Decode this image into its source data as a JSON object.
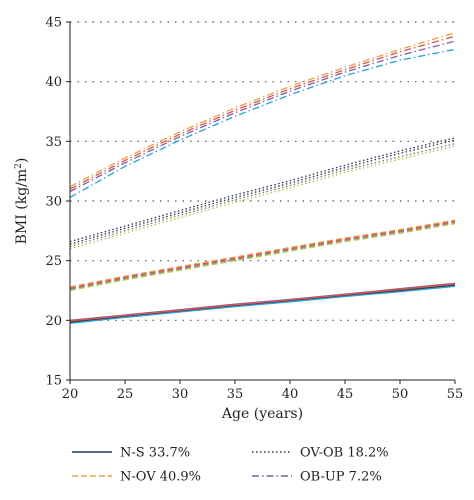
{
  "chart_data": {
    "type": "line",
    "xlabel": "Age (years)",
    "ylabel": "BMI (kg/m²)",
    "ylabel_base": "BMI (kg/m",
    "ylabel_sup": "2",
    "ylabel_close": ")",
    "xlim": [
      20,
      55
    ],
    "ylim": [
      15,
      45
    ],
    "xticks": [
      "20",
      "25",
      "30",
      "35",
      "40",
      "45",
      "50",
      "55"
    ],
    "yticks": [
      "15",
      "20",
      "25",
      "30",
      "35",
      "40",
      "45"
    ],
    "grid": "horizontal dotted",
    "legend_position": "bottom",
    "x": [
      20,
      25,
      30,
      35,
      40,
      45,
      50,
      55
    ],
    "series": [
      {
        "name": "N-S 33.7%",
        "style": "solid",
        "lines": [
          {
            "color": "#1f3864",
            "values": [
              19.8,
              20.3,
              20.75,
              21.2,
              21.6,
              22.05,
              22.45,
              22.9
            ]
          },
          {
            "color": "#e8a04a",
            "values": [
              19.9,
              20.4,
              20.85,
              21.3,
              21.7,
              22.15,
              22.55,
              23.0
            ]
          },
          {
            "color": "#3a3a3a",
            "values": [
              19.85,
              20.35,
              20.8,
              21.25,
              21.65,
              22.1,
              22.5,
              22.95
            ]
          },
          {
            "color": "#7b5ea7",
            "values": [
              20.0,
              20.45,
              20.9,
              21.35,
              21.75,
              22.2,
              22.65,
              23.1
            ]
          },
          {
            "color": "#d9534f",
            "values": [
              19.95,
              20.4,
              20.85,
              21.3,
              21.7,
              22.15,
              22.6,
              23.05
            ]
          },
          {
            "color": "#2a9fd6",
            "values": [
              19.75,
              20.25,
              20.7,
              21.15,
              21.55,
              22.0,
              22.4,
              22.85
            ]
          }
        ]
      },
      {
        "name": "N-OV 40.9%",
        "style": "dashed",
        "lines": [
          {
            "color": "#e8a04a",
            "values": [
              22.8,
              23.7,
              24.5,
              25.3,
              26.1,
              26.9,
              27.6,
              28.4
            ]
          },
          {
            "color": "#8a8a8a",
            "values": [
              22.6,
              23.5,
              24.3,
              25.1,
              25.9,
              26.7,
              27.4,
              28.2
            ]
          },
          {
            "color": "#b8c44a",
            "values": [
              22.5,
              23.4,
              24.2,
              25.0,
              25.8,
              26.6,
              27.3,
              28.1
            ]
          },
          {
            "color": "#d9534f",
            "values": [
              22.7,
              23.6,
              24.4,
              25.2,
              26.0,
              26.8,
              27.5,
              28.3
            ]
          }
        ]
      },
      {
        "name": "OV-OB 18.2%",
        "style": "dotted",
        "lines": [
          {
            "color": "#333333",
            "values": [
              26.4,
              27.7,
              29.0,
              30.3,
              31.5,
              32.8,
              34.0,
              35.1
            ]
          },
          {
            "color": "#1f3864",
            "values": [
              26.6,
              27.9,
              29.2,
              30.5,
              31.7,
              33.0,
              34.2,
              35.3
            ]
          },
          {
            "color": "#7a7a7a",
            "values": [
              26.2,
              27.5,
              28.8,
              30.1,
              31.3,
              32.6,
              33.7,
              34.8
            ]
          },
          {
            "color": "#b8c44a",
            "values": [
              26.0,
              27.3,
              28.6,
              29.9,
              31.1,
              32.4,
              33.5,
              34.6
            ]
          }
        ]
      },
      {
        "name": "OB-UP 7.2%",
        "style": "dashdot",
        "lines": [
          {
            "color": "#e8a04a",
            "values": [
              31.2,
              33.6,
              35.8,
              37.8,
              39.6,
              41.2,
              42.7,
              44.1
            ]
          },
          {
            "color": "#d9534f",
            "values": [
              31.0,
              33.4,
              35.6,
              37.6,
              39.4,
              41.0,
              42.5,
              43.8
            ]
          },
          {
            "color": "#7b5ea7",
            "values": [
              30.8,
              33.2,
              35.4,
              37.4,
              39.2,
              40.8,
              42.2,
              43.4
            ]
          },
          {
            "color": "#2a9fd6",
            "values": [
              30.3,
              32.9,
              35.1,
              37.1,
              38.9,
              40.5,
              41.8,
              42.7
            ]
          }
        ]
      }
    ],
    "legend": [
      {
        "label": "N-S 33.7%",
        "style": "solid",
        "color": "#1f3864"
      },
      {
        "label": "OV-OB 18.2%",
        "style": "dotted",
        "color": "#333333"
      },
      {
        "label": "N-OV 40.9%",
        "style": "dashed",
        "color": "#e8a04a"
      },
      {
        "label": "OB-UP 7.2%",
        "style": "dashdot",
        "color": "#7b5ea7"
      }
    ]
  }
}
